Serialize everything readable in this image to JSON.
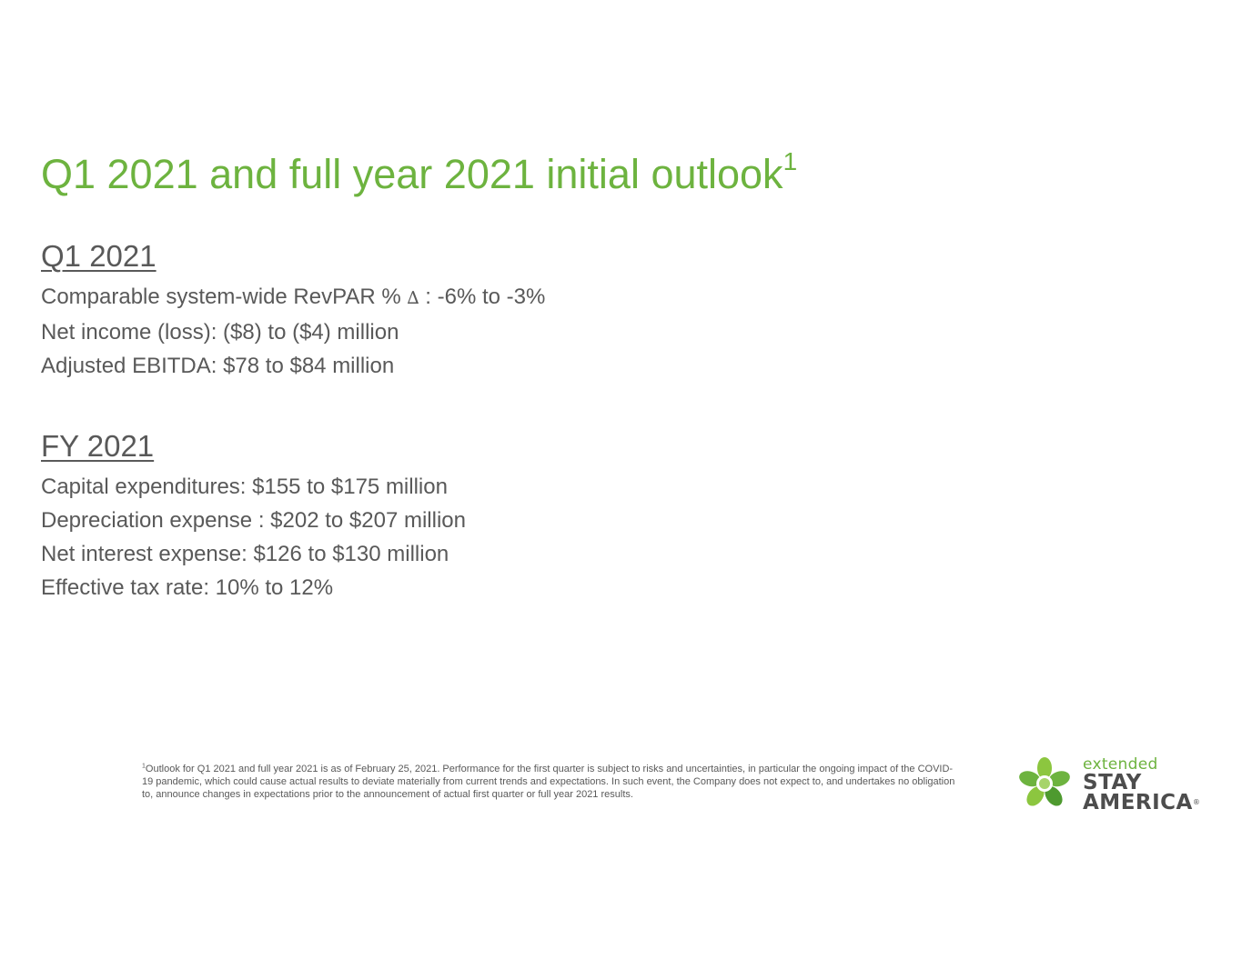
{
  "title": {
    "text": "Q1 2021 and full year 2021 initial outlook",
    "superscript": "1"
  },
  "q1": {
    "heading": "Q1 2021",
    "items": {
      "revpar_prefix": "Comparable system-wide RevPAR % ",
      "revpar_symbol": "∆",
      "revpar_suffix": " : -6% to -3%",
      "net_income": "Net income (loss): ($8) to ($4) million",
      "adjusted_ebitda": "Adjusted EBITDA: $78 to $84 million"
    }
  },
  "fy": {
    "heading": "FY 2021",
    "items": [
      "Capital expenditures: $155 to $175 million",
      "Depreciation expense : $202 to $207 million",
      "Net interest expense: $126 to $130 million",
      "Effective tax rate: 10% to 12%"
    ]
  },
  "footnote": {
    "marker": "1",
    "text": "Outlook for Q1 2021 and full year 2021 is as of February 25, 2021. Performance for the first quarter is subject to risks and uncertainties, in particular the ongoing impact of the COVID-19 pandemic, which could cause actual results to deviate materially from current trends and expectations. In such event, the Company does not expect to, and undertakes no obligation to, announce changes in expectations prior to the announcement of actual first quarter or full year 2021 results."
  },
  "logo": {
    "line1": "extended",
    "line2": "STAY",
    "line3": "AMERICA",
    "registered": "®",
    "colors": {
      "green_light": "#8cc63f",
      "green_dark": "#4e9a2f",
      "text_dark": "#4d4d4d"
    }
  },
  "colors": {
    "title": "#6db33f",
    "body_text": "#595959",
    "background": "#ffffff"
  }
}
